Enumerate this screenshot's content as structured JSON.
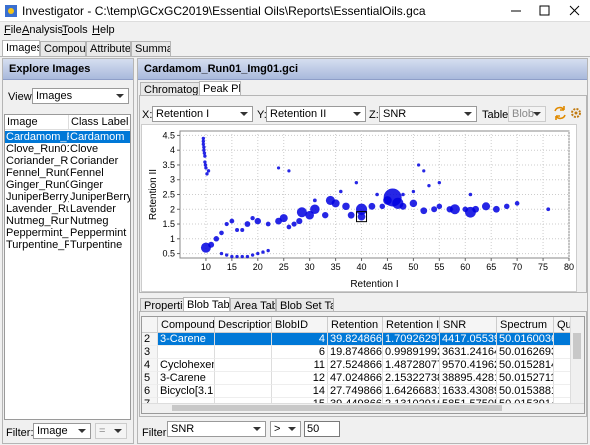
{
  "window": {
    "title": "Investigator - C:\\temp\\GCxGC2019\\Essential Oils\\Reports\\EssentialOils.gca"
  },
  "menu": [
    "File",
    "Analysis",
    "Tools",
    "Help"
  ],
  "tabs": [
    "Images",
    "Compounds",
    "Attributes",
    "Summary"
  ],
  "explore": {
    "header": "Explore Images",
    "view_label": "View:",
    "view_value": "Images",
    "columns": [
      "Image",
      "Class Label"
    ],
    "rows": [
      [
        "Cardamom_Run...",
        "Cardamom"
      ],
      [
        "Clove_Run01_...",
        "Clove"
      ],
      [
        "Coriander_Run0...",
        "Coriander"
      ],
      [
        "Fennel_Run01_I...",
        "Fennel"
      ],
      [
        "Ginger_Run01_...",
        "Ginger"
      ],
      [
        "JuniperBerry_...",
        "JuniperBerry"
      ],
      [
        "Lavender_Run...",
        "Lavender"
      ],
      [
        "Nutmeg_Run0...",
        "Nutmeg"
      ],
      [
        "Peppermint_Ru...",
        "Peppermint"
      ],
      [
        "Turpentine_Ru...",
        "Turpentine"
      ]
    ],
    "filter_label": "Filter:",
    "filter_field": "Image",
    "filter_op": "="
  },
  "detail": {
    "header": "Cardamom_Run01_Img01.gci",
    "tabs": [
      "Chromatogram",
      "Peak Plot"
    ],
    "x_label": "X:",
    "x_value": "Retention I",
    "y_label": "Y:",
    "y_value": "Retention II",
    "z_label": "Z:",
    "z_value": "SNR",
    "table_label": "Table:",
    "table_value": "Blob"
  },
  "chart_data": {
    "type": "scatter",
    "x_label": "Retention I",
    "y_label": "Retention II",
    "color": "#0000e0",
    "grid": true,
    "xlim": [
      5,
      80
    ],
    "ylim": [
      0.35,
      4.65
    ],
    "xticks": [
      10,
      15,
      20,
      25,
      30,
      35,
      40,
      45,
      50,
      55,
      60,
      65,
      70,
      75,
      80
    ],
    "yticks": [
      0.5,
      1,
      1.5,
      2,
      2.5,
      3,
      3.5,
      4,
      4.5
    ],
    "selected_point": 60,
    "x": [
      9.5,
      9.5,
      9.5,
      9.6,
      9.6,
      9.7,
      9.8,
      9.8,
      9.9,
      10,
      10.2,
      10.5,
      24,
      26,
      51,
      52,
      13,
      14,
      15,
      16,
      17,
      18,
      19,
      20,
      21,
      22,
      10,
      11,
      12,
      13,
      14,
      15,
      16,
      17,
      18,
      19,
      20,
      22,
      24,
      25,
      26,
      27,
      28,
      28.5,
      30,
      31,
      33,
      34,
      35,
      37,
      38,
      40,
      42,
      44,
      45,
      46,
      47,
      48,
      50,
      52,
      40,
      54,
      55,
      57,
      58,
      60,
      61,
      62,
      64,
      66,
      68,
      70,
      76,
      31,
      36,
      39,
      43,
      53,
      55,
      61,
      48,
      50
    ],
    "values": [
      4.4,
      4.3,
      4.2,
      4.1,
      4.0,
      3.9,
      3.8,
      3.6,
      3.5,
      3.4,
      3.2,
      3.3,
      3.4,
      3.3,
      3.5,
      3.3,
      0.5,
      0.45,
      0.4,
      0.4,
      0.4,
      0.4,
      0.45,
      0.5,
      0.55,
      0.6,
      0.7,
      0.8,
      1.0,
      1.2,
      1.5,
      1.6,
      1.3,
      1.3,
      1.5,
      1.7,
      1.6,
      1.5,
      1.6,
      1.7,
      1.4,
      1.5,
      1.6,
      1.9,
      1.8,
      2.0,
      1.8,
      2.3,
      2.2,
      2.1,
      1.8,
      2.0,
      2.1,
      2.1,
      2.3,
      2.4,
      2.2,
      2.1,
      2.2,
      1.95,
      1.75,
      2.0,
      2.1,
      2.0,
      2.0,
      2.0,
      1.9,
      2.0,
      2.1,
      2.0,
      2.1,
      2.2,
      2.0,
      2.3,
      2.6,
      2.9,
      2.5,
      2.8,
      2.9,
      2.5,
      2.5,
      2.6
    ],
    "z": [
      150,
      150,
      150,
      150,
      150,
      150,
      150,
      150,
      150,
      150,
      150,
      150,
      100,
      100,
      100,
      100,
      150,
      150,
      150,
      150,
      150,
      150,
      150,
      150,
      150,
      150,
      9000,
      2000,
      1500,
      800,
      500,
      900,
      400,
      400,
      1800,
      600,
      2500,
      900,
      3000,
      5000,
      800,
      1200,
      2200,
      9000,
      6000,
      8000,
      2500,
      7000,
      5000,
      4000,
      3000,
      12000,
      3000,
      1500,
      6000,
      38000,
      12000,
      3000,
      4000,
      3000,
      4417,
      2000,
      1500,
      2500,
      9000,
      1500,
      11000,
      3000,
      5000,
      3000,
      1500,
      800,
      300,
      300,
      200,
      150,
      200,
      150,
      150,
      200,
      200,
      150
    ]
  },
  "table_tabs": [
    "Properties",
    "Blob Table",
    "Area Table",
    "Blob Set Table"
  ],
  "table": {
    "columns": [
      "Compound...",
      "Description",
      "BlobID",
      "Retention I",
      "Retention II",
      "SNR",
      "Spectrum",
      "Qua"
    ],
    "row_numbers": [
      "2",
      "3",
      "4",
      "5",
      "6",
      "7"
    ],
    "rows": [
      [
        "3-Carene",
        "",
        "4",
        "39.8248666...",
        "1.70926297...",
        "4417.05539...",
        "50.0160036..."
      ],
      [
        "",
        "",
        "6",
        "19.8748666...",
        "0.99891992...",
        "3631.24164...",
        "50.0162693..."
      ],
      [
        "Cyclohexen...",
        "",
        "11",
        "27.5248666...",
        "1.48728077...",
        "9570.41962...",
        "50.0152814..."
      ],
      [
        "3-Carene",
        "",
        "12",
        "47.0248666...",
        "2.15322738...",
        "38895.4281...",
        "50.0152711..."
      ],
      [
        "Bicyclo[3.1....",
        "",
        "14",
        "27.7498666...",
        "1.64266831...",
        "1633.43089...",
        "50.0153881..."
      ],
      [
        "",
        "",
        "15",
        "39.4498666...",
        "2.13102916...",
        "5851.57505...",
        "50.0153914..."
      ]
    ]
  },
  "filter": {
    "label": "Filter:",
    "field": "SNR",
    "op": ">",
    "value": "50"
  }
}
